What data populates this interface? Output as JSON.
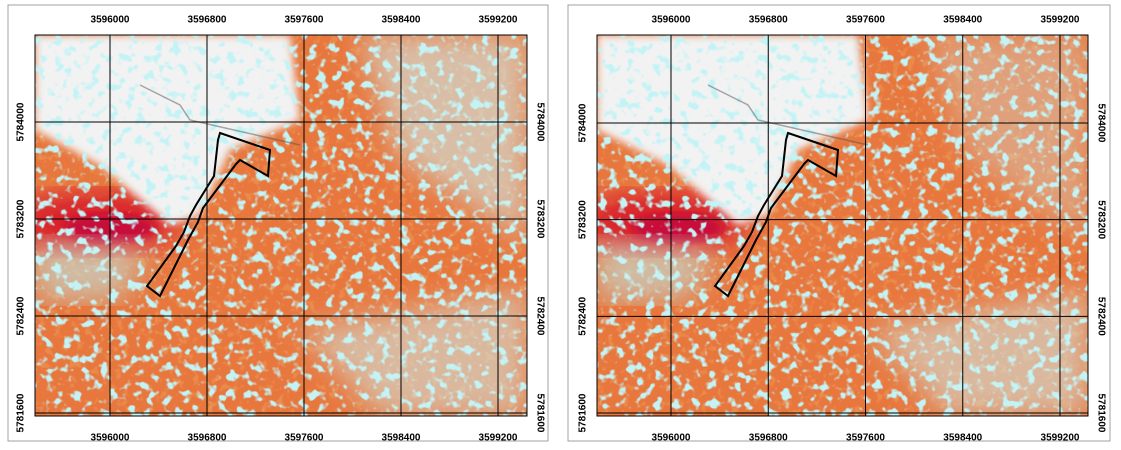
{
  "panels": [
    {
      "xticks": [
        3596000,
        3596800,
        3597600,
        3598400,
        3599200
      ],
      "yticks": [
        5784000,
        5783200,
        5782400,
        5781600
      ]
    },
    {
      "xticks": [
        3596000,
        3596800,
        3597600,
        3598400,
        3599200
      ],
      "yticks": [
        5784000,
        5783200,
        5782400,
        5781600
      ]
    }
  ]
}
